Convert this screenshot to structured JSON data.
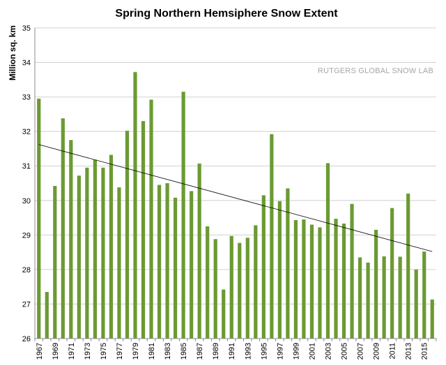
{
  "chart_data": {
    "type": "bar",
    "title": "Spring Northern Hemsiphere Snow Extent",
    "ylabel": "Million sq. km",
    "xlabel": "",
    "ylim": [
      26,
      35
    ],
    "yticks": [
      26,
      27,
      28,
      29,
      30,
      31,
      32,
      33,
      34,
      35
    ],
    "grid": "horizontal",
    "annotation": "RUTGERS GLOBAL SNOW LAB",
    "bar_color": "#6b9a33",
    "categories": [
      "1967",
      "1968",
      "1969",
      "1970",
      "1971",
      "1972",
      "1973",
      "1974",
      "1975",
      "1976",
      "1977",
      "1978",
      "1979",
      "1980",
      "1981",
      "1982",
      "1983",
      "1984",
      "1985",
      "1986",
      "1987",
      "1988",
      "1989",
      "1990",
      "1991",
      "1992",
      "1993",
      "1994",
      "1995",
      "1996",
      "1997",
      "1998",
      "1999",
      "2000",
      "2001",
      "2002",
      "2003",
      "2004",
      "2005",
      "2006",
      "2007",
      "2008",
      "2009",
      "2010",
      "2011",
      "2012",
      "2013",
      "2014",
      "2015",
      "2016"
    ],
    "tick_labels_shown": [
      "1967",
      "1969",
      "1971",
      "1973",
      "1975",
      "1977",
      "1979",
      "1981",
      "1983",
      "1985",
      "1987",
      "1989",
      "1991",
      "1993",
      "1995",
      "1997",
      "1999",
      "2001",
      "2003",
      "2005",
      "2007",
      "2009",
      "2011",
      "2013",
      "2015"
    ],
    "values": [
      32.95,
      27.35,
      30.42,
      32.38,
      31.75,
      30.72,
      30.95,
      31.18,
      30.95,
      31.32,
      30.38,
      32.02,
      33.72,
      32.3,
      32.92,
      30.45,
      30.5,
      30.08,
      33.15,
      30.27,
      31.07,
      29.25,
      28.88,
      27.42,
      28.97,
      28.77,
      28.92,
      29.28,
      30.15,
      31.92,
      29.98,
      30.35,
      29.43,
      29.45,
      29.3,
      29.22,
      31.08,
      29.47,
      29.33,
      29.9,
      28.35,
      28.2,
      29.15,
      28.38,
      29.78,
      28.37,
      30.2,
      28.0,
      28.52,
      27.13
    ],
    "trendline": {
      "start": 31.62,
      "end": 28.52,
      "color": "#000000"
    }
  }
}
